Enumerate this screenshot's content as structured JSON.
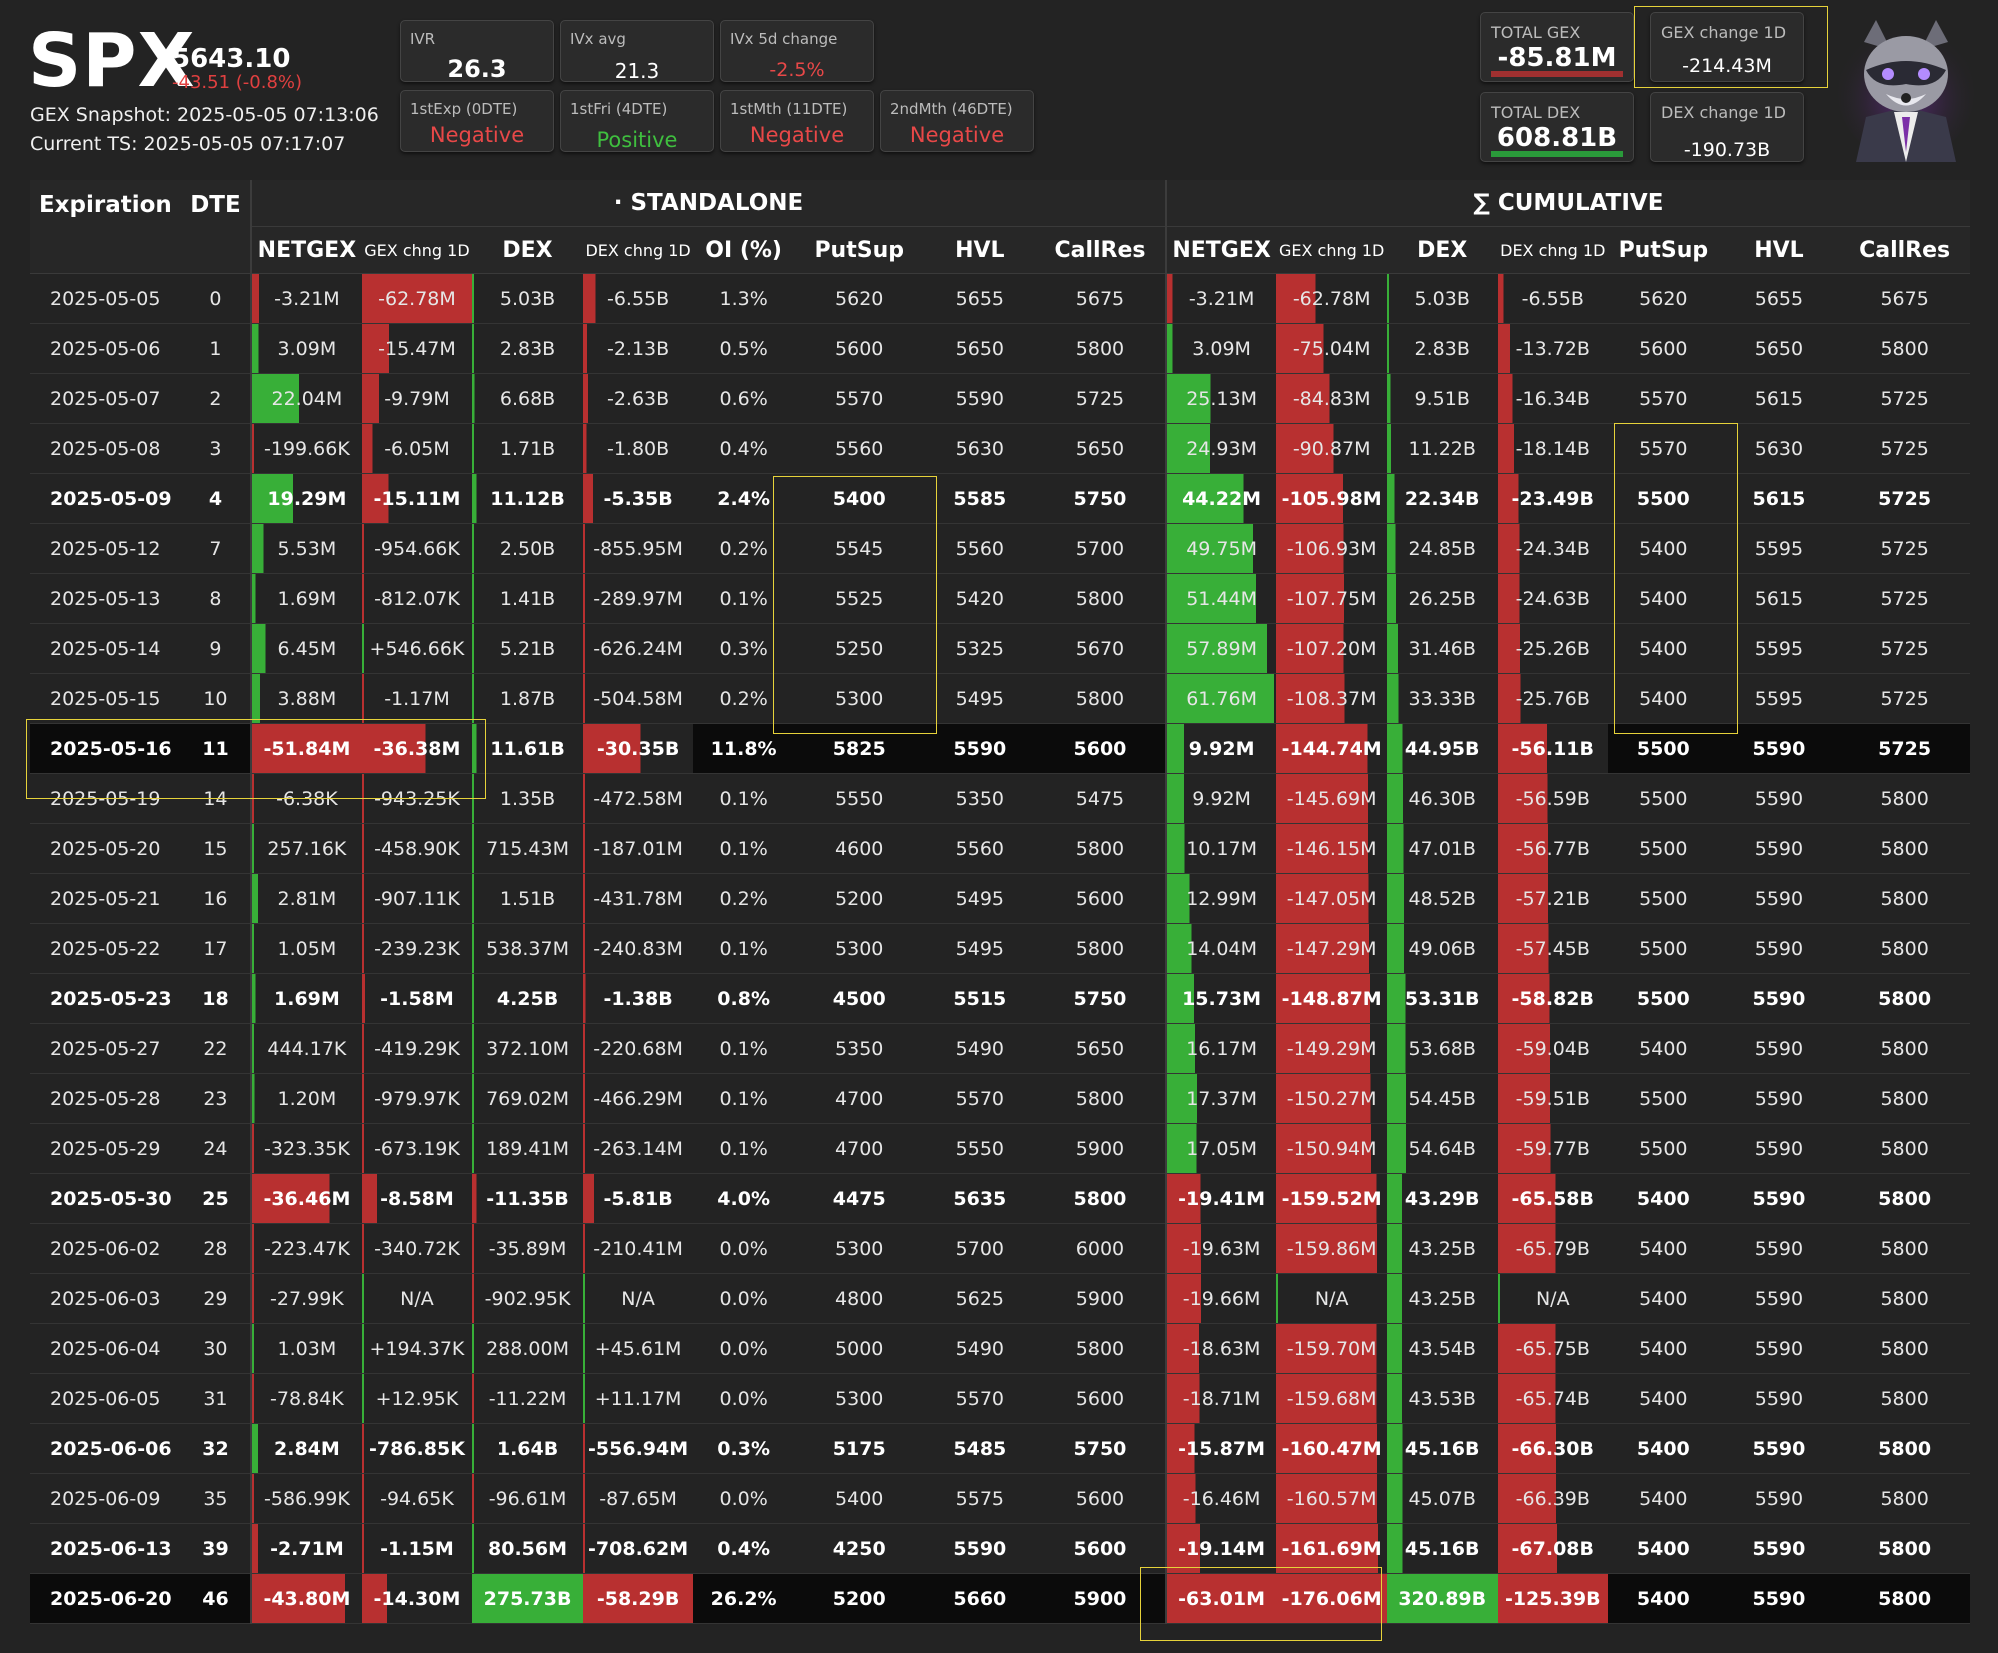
{
  "header": {
    "ticker": "SPX",
    "price": "5643.10",
    "change": "-43.51 (-0.8%)",
    "snapshot": "GEX Snapshot: 2025-05-05 07:13:06",
    "current_ts": "Current TS: 2025-05-05 07:17:07"
  },
  "metrics": {
    "ivr": {
      "label": "IVR",
      "value": "26.3"
    },
    "ivx_avg": {
      "label": "IVx avg",
      "value": "21.3"
    },
    "ivx_5d": {
      "label": "IVx 5d change",
      "value": "-2.5%"
    },
    "first_exp": {
      "label": "1stExp (0DTE)",
      "value": "Negative"
    },
    "first_fri": {
      "label": "1stFri (4DTE)",
      "value": "Positive"
    },
    "first_mth": {
      "label": "1stMth (11DTE)",
      "value": "Negative"
    },
    "second_mth": {
      "label": "2ndMth (46DTE)",
      "value": "Negative"
    }
  },
  "totals": {
    "total_gex": {
      "label": "TOTAL GEX",
      "value": "-85.81M"
    },
    "gex_change": {
      "label": "GEX change 1D",
      "value": "-214.43M"
    },
    "total_dex": {
      "label": "TOTAL DEX",
      "value": "608.81B"
    },
    "dex_change": {
      "label": "DEX change 1D",
      "value": "-190.73B"
    }
  },
  "colors": {
    "positive": "#3fbf3f",
    "negative": "#e84848",
    "highlight": "#e6d23a",
    "background": "#232323"
  },
  "logo": {
    "name": "raccoon-suit-logo"
  },
  "table": {
    "group_headers": {
      "expiration": "Expiration",
      "dte": "DTE",
      "standalone": "· STANDALONE",
      "cumulative": "∑ CUMULATIVE"
    },
    "columns": [
      "NETGEX",
      "GEX chng 1D",
      "DEX",
      "DEX chng 1D",
      "OI (%)",
      "PutSup",
      "HVL",
      "CallRes",
      "NETGEX",
      "GEX chng 1D",
      "DEX",
      "DEX chng 1D",
      "PutSup",
      "HVL",
      "CallRes"
    ],
    "rows": [
      {
        "exp": "2025-05-05",
        "dte": "0",
        "s": [
          "-3.21M",
          "-62.78M",
          "5.03B",
          "-6.55B",
          "1.3%",
          "5620",
          "5655",
          "5675"
        ],
        "c": [
          "-3.21M",
          "-62.78M",
          "5.03B",
          "-6.55B",
          "5620",
          "5655",
          "5675"
        ]
      },
      {
        "exp": "2025-05-06",
        "dte": "1",
        "s": [
          "3.09M",
          "-15.47M",
          "2.83B",
          "-2.13B",
          "0.5%",
          "5600",
          "5650",
          "5800"
        ],
        "c": [
          "3.09M",
          "-75.04M",
          "2.83B",
          "-13.72B",
          "5600",
          "5650",
          "5800"
        ]
      },
      {
        "exp": "2025-05-07",
        "dte": "2",
        "s": [
          "22.04M",
          "-9.79M",
          "6.68B",
          "-2.63B",
          "0.6%",
          "5570",
          "5590",
          "5725"
        ],
        "c": [
          "25.13M",
          "-84.83M",
          "9.51B",
          "-16.34B",
          "5570",
          "5615",
          "5725"
        ]
      },
      {
        "exp": "2025-05-08",
        "dte": "3",
        "s": [
          "-199.66K",
          "-6.05M",
          "1.71B",
          "-1.80B",
          "0.4%",
          "5560",
          "5630",
          "5650"
        ],
        "c": [
          "24.93M",
          "-90.87M",
          "11.22B",
          "-18.14B",
          "5570",
          "5630",
          "5725"
        ]
      },
      {
        "exp": "2025-05-09",
        "dte": "4",
        "s": [
          "19.29M",
          "-15.11M",
          "11.12B",
          "-5.35B",
          "2.4%",
          "5400",
          "5585",
          "5750"
        ],
        "c": [
          "44.22M",
          "-105.98M",
          "22.34B",
          "-23.49B",
          "5500",
          "5615",
          "5725"
        ]
      },
      {
        "exp": "2025-05-12",
        "dte": "7",
        "s": [
          "5.53M",
          "-954.66K",
          "2.50B",
          "-855.95M",
          "0.2%",
          "5545",
          "5560",
          "5700"
        ],
        "c": [
          "49.75M",
          "-106.93M",
          "24.85B",
          "-24.34B",
          "5400",
          "5595",
          "5725"
        ]
      },
      {
        "exp": "2025-05-13",
        "dte": "8",
        "s": [
          "1.69M",
          "-812.07K",
          "1.41B",
          "-289.97M",
          "0.1%",
          "5525",
          "5420",
          "5800"
        ],
        "c": [
          "51.44M",
          "-107.75M",
          "26.25B",
          "-24.63B",
          "5400",
          "5615",
          "5725"
        ]
      },
      {
        "exp": "2025-05-14",
        "dte": "9",
        "s": [
          "6.45M",
          "+546.66K",
          "5.21B",
          "-626.24M",
          "0.3%",
          "5250",
          "5325",
          "5670"
        ],
        "c": [
          "57.89M",
          "-107.20M",
          "31.46B",
          "-25.26B",
          "5400",
          "5595",
          "5725"
        ]
      },
      {
        "exp": "2025-05-15",
        "dte": "10",
        "s": [
          "3.88M",
          "-1.17M",
          "1.87B",
          "-504.58M",
          "0.2%",
          "5300",
          "5495",
          "5800"
        ],
        "c": [
          "61.76M",
          "-108.37M",
          "33.33B",
          "-25.76B",
          "5400",
          "5595",
          "5725"
        ]
      },
      {
        "exp": "2025-05-16",
        "dte": "11",
        "s": [
          "-51.84M",
          "-36.38M",
          "11.61B",
          "-30.35B",
          "11.8%",
          "5825",
          "5590",
          "5600"
        ],
        "c": [
          "9.92M",
          "-144.74M",
          "44.95B",
          "-56.11B",
          "5500",
          "5590",
          "5725"
        ]
      },
      {
        "exp": "2025-05-19",
        "dte": "14",
        "s": [
          "-6.38K",
          "-943.25K",
          "1.35B",
          "-472.58M",
          "0.1%",
          "5550",
          "5350",
          "5475"
        ],
        "c": [
          "9.92M",
          "-145.69M",
          "46.30B",
          "-56.59B",
          "5500",
          "5590",
          "5800"
        ]
      },
      {
        "exp": "2025-05-20",
        "dte": "15",
        "s": [
          "257.16K",
          "-458.90K",
          "715.43M",
          "-187.01M",
          "0.1%",
          "4600",
          "5560",
          "5800"
        ],
        "c": [
          "10.17M",
          "-146.15M",
          "47.01B",
          "-56.77B",
          "5500",
          "5590",
          "5800"
        ]
      },
      {
        "exp": "2025-05-21",
        "dte": "16",
        "s": [
          "2.81M",
          "-907.11K",
          "1.51B",
          "-431.78M",
          "0.2%",
          "5200",
          "5495",
          "5600"
        ],
        "c": [
          "12.99M",
          "-147.05M",
          "48.52B",
          "-57.21B",
          "5500",
          "5590",
          "5800"
        ]
      },
      {
        "exp": "2025-05-22",
        "dte": "17",
        "s": [
          "1.05M",
          "-239.23K",
          "538.37M",
          "-240.83M",
          "0.1%",
          "5300",
          "5495",
          "5800"
        ],
        "c": [
          "14.04M",
          "-147.29M",
          "49.06B",
          "-57.45B",
          "5500",
          "5590",
          "5800"
        ]
      },
      {
        "exp": "2025-05-23",
        "dte": "18",
        "s": [
          "1.69M",
          "-1.58M",
          "4.25B",
          "-1.38B",
          "0.8%",
          "4500",
          "5515",
          "5750"
        ],
        "c": [
          "15.73M",
          "-148.87M",
          "53.31B",
          "-58.82B",
          "5500",
          "5590",
          "5800"
        ]
      },
      {
        "exp": "2025-05-27",
        "dte": "22",
        "s": [
          "444.17K",
          "-419.29K",
          "372.10M",
          "-220.68M",
          "0.1%",
          "5350",
          "5490",
          "5650"
        ],
        "c": [
          "16.17M",
          "-149.29M",
          "53.68B",
          "-59.04B",
          "5400",
          "5590",
          "5800"
        ]
      },
      {
        "exp": "2025-05-28",
        "dte": "23",
        "s": [
          "1.20M",
          "-979.97K",
          "769.02M",
          "-466.29M",
          "0.1%",
          "4700",
          "5570",
          "5800"
        ],
        "c": [
          "17.37M",
          "-150.27M",
          "54.45B",
          "-59.51B",
          "5500",
          "5590",
          "5800"
        ]
      },
      {
        "exp": "2025-05-29",
        "dte": "24",
        "s": [
          "-323.35K",
          "-673.19K",
          "189.41M",
          "-263.14M",
          "0.1%",
          "4700",
          "5550",
          "5900"
        ],
        "c": [
          "17.05M",
          "-150.94M",
          "54.64B",
          "-59.77B",
          "5500",
          "5590",
          "5800"
        ]
      },
      {
        "exp": "2025-05-30",
        "dte": "25",
        "s": [
          "-36.46M",
          "-8.58M",
          "-11.35B",
          "-5.81B",
          "4.0%",
          "4475",
          "5635",
          "5800"
        ],
        "c": [
          "-19.41M",
          "-159.52M",
          "43.29B",
          "-65.58B",
          "5400",
          "5590",
          "5800"
        ]
      },
      {
        "exp": "2025-06-02",
        "dte": "28",
        "s": [
          "-223.47K",
          "-340.72K",
          "-35.89M",
          "-210.41M",
          "0.0%",
          "5300",
          "5700",
          "6000"
        ],
        "c": [
          "-19.63M",
          "-159.86M",
          "43.25B",
          "-65.79B",
          "5400",
          "5590",
          "5800"
        ]
      },
      {
        "exp": "2025-06-03",
        "dte": "29",
        "s": [
          "-27.99K",
          "N/A",
          "-902.95K",
          "N/A",
          "0.0%",
          "4800",
          "5625",
          "5900"
        ],
        "c": [
          "-19.66M",
          "N/A",
          "43.25B",
          "N/A",
          "5400",
          "5590",
          "5800"
        ]
      },
      {
        "exp": "2025-06-04",
        "dte": "30",
        "s": [
          "1.03M",
          "+194.37K",
          "288.00M",
          "+45.61M",
          "0.0%",
          "5000",
          "5490",
          "5800"
        ],
        "c": [
          "-18.63M",
          "-159.70M",
          "43.54B",
          "-65.75B",
          "5400",
          "5590",
          "5800"
        ]
      },
      {
        "exp": "2025-06-05",
        "dte": "31",
        "s": [
          "-78.84K",
          "+12.95K",
          "-11.22M",
          "+11.17M",
          "0.0%",
          "5300",
          "5570",
          "5600"
        ],
        "c": [
          "-18.71M",
          "-159.68M",
          "43.53B",
          "-65.74B",
          "5400",
          "5590",
          "5800"
        ]
      },
      {
        "exp": "2025-06-06",
        "dte": "32",
        "s": [
          "2.84M",
          "-786.85K",
          "1.64B",
          "-556.94M",
          "0.3%",
          "5175",
          "5485",
          "5750"
        ],
        "c": [
          "-15.87M",
          "-160.47M",
          "45.16B",
          "-66.30B",
          "5400",
          "5590",
          "5800"
        ]
      },
      {
        "exp": "2025-06-09",
        "dte": "35",
        "s": [
          "-586.99K",
          "-94.65K",
          "-96.61M",
          "-87.65M",
          "0.0%",
          "5400",
          "5575",
          "5600"
        ],
        "c": [
          "-16.46M",
          "-160.57M",
          "45.07B",
          "-66.39B",
          "5400",
          "5590",
          "5800"
        ]
      },
      {
        "exp": "2025-06-13",
        "dte": "39",
        "s": [
          "-2.71M",
          "-1.15M",
          "80.56M",
          "-708.62M",
          "0.4%",
          "4250",
          "5590",
          "5600"
        ],
        "c": [
          "-19.14M",
          "-161.69M",
          "45.16B",
          "-67.08B",
          "5400",
          "5590",
          "5800"
        ]
      },
      {
        "exp": "2025-06-20",
        "dte": "46",
        "s": [
          "-43.80M",
          "-14.30M",
          "275.73B",
          "-58.29B",
          "26.2%",
          "5200",
          "5660",
          "5900"
        ],
        "c": [
          "-63.01M",
          "-176.06M",
          "320.89B",
          "-125.39B",
          "5400",
          "5590",
          "5800"
        ]
      }
    ]
  }
}
